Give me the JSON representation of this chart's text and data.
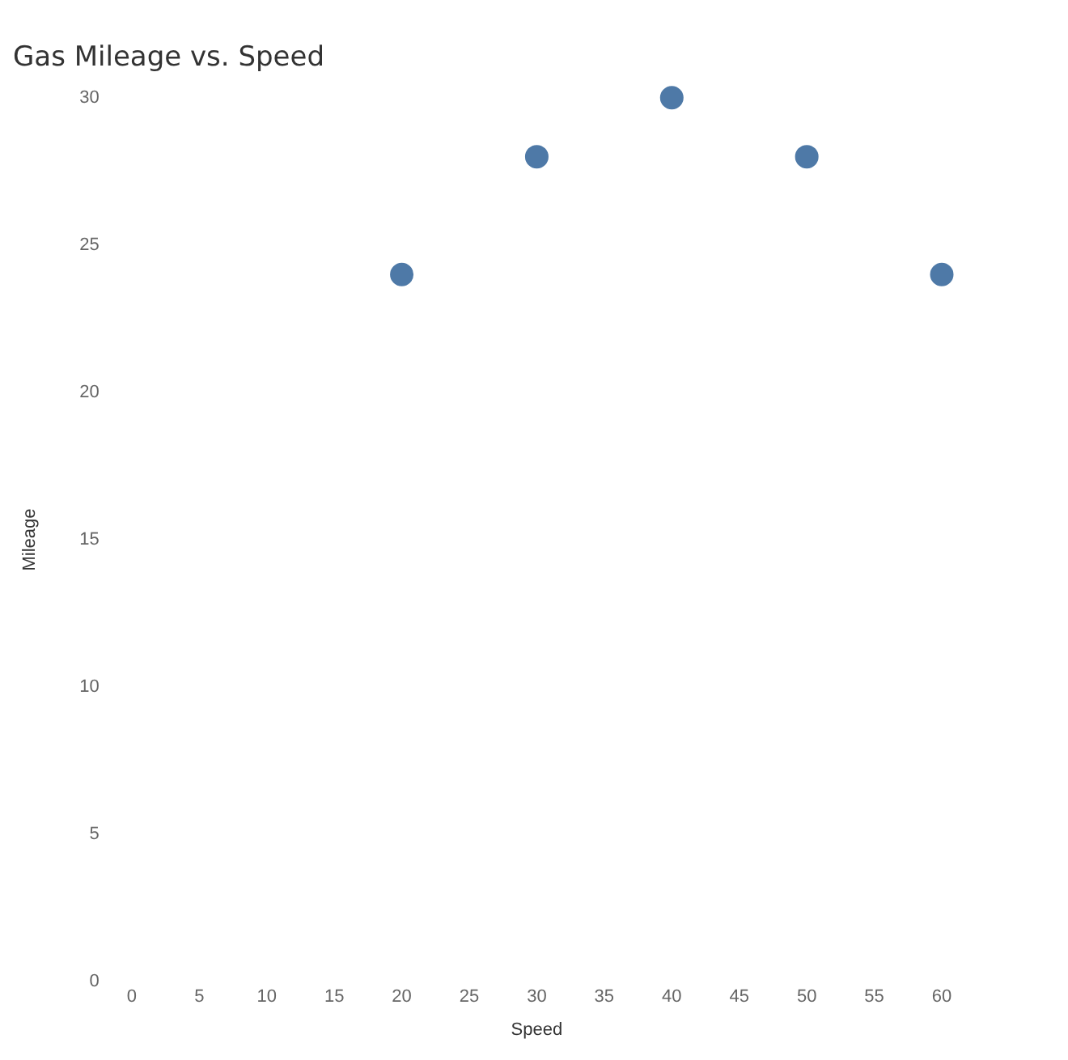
{
  "chart_data": {
    "type": "scatter",
    "title": "Gas Mileage vs. Speed",
    "xlabel": "Speed",
    "ylabel": "Mileage",
    "x": [
      20,
      30,
      40,
      50,
      60
    ],
    "series": [
      {
        "color": "#4e79a7",
        "values": [
          24,
          28,
          30,
          28,
          24
        ]
      }
    ],
    "xlim": [
      0,
      60
    ],
    "ylim": [
      0,
      30
    ],
    "xticks": [
      0,
      5,
      10,
      15,
      20,
      25,
      30,
      35,
      40,
      45,
      50,
      55,
      60
    ],
    "yticks": [
      0,
      5,
      10,
      15,
      20,
      25,
      30
    ],
    "grid": false,
    "legend": false,
    "marker": "circle"
  }
}
